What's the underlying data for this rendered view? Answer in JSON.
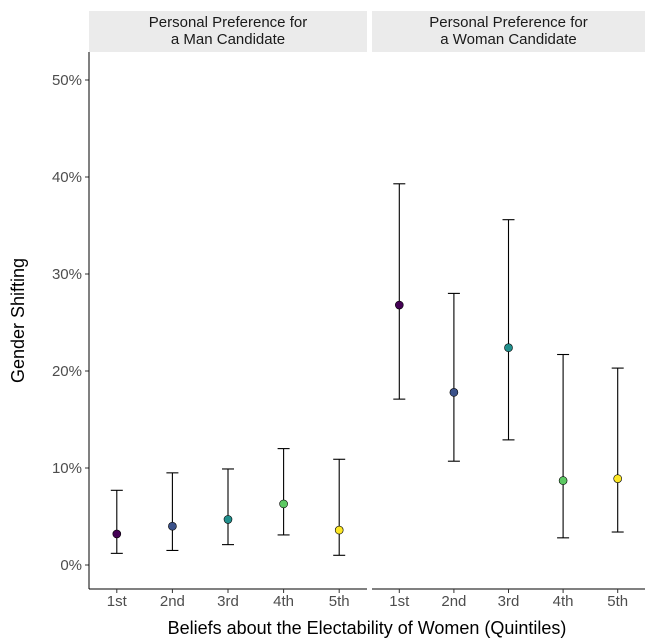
{
  "chart_data": {
    "type": "scatter",
    "subtype": "point-with-error-bars, faceted",
    "xlabel": "Beliefs about the Electability of Women (Quintiles)",
    "ylabel": "Gender Shifting",
    "ylim": [
      0,
      0.52
    ],
    "y_ticks": [
      0,
      0.1,
      0.2,
      0.3,
      0.4,
      0.5
    ],
    "y_tick_labels": [
      "0%",
      "10%",
      "20%",
      "30%",
      "40%",
      "50%"
    ],
    "categories": [
      "1st",
      "2nd",
      "3rd",
      "4th",
      "5th"
    ],
    "colors": [
      "#440154",
      "#3b528b",
      "#21908d",
      "#5dc963",
      "#fde725"
    ],
    "grid": false,
    "legend": "none",
    "panels": [
      {
        "title": "Personal Preference for\na Man Candidate",
        "title_lines": [
          "Personal Preference for",
          "a Man Candidate"
        ],
        "points": [
          {
            "x": "1st",
            "y": 0.032,
            "low": 0.012,
            "high": 0.077
          },
          {
            "x": "2nd",
            "y": 0.04,
            "low": 0.015,
            "high": 0.095
          },
          {
            "x": "3rd",
            "y": 0.047,
            "low": 0.021,
            "high": 0.099
          },
          {
            "x": "4th",
            "y": 0.063,
            "low": 0.031,
            "high": 0.12
          },
          {
            "x": "5th",
            "y": 0.036,
            "low": 0.01,
            "high": 0.109
          }
        ]
      },
      {
        "title": "Personal Preference for\na Woman Candidate",
        "title_lines": [
          "Personal Preference for",
          "a Woman Candidate"
        ],
        "points": [
          {
            "x": "1st",
            "y": 0.268,
            "low": 0.171,
            "high": 0.393
          },
          {
            "x": "2nd",
            "y": 0.178,
            "low": 0.107,
            "high": 0.28
          },
          {
            "x": "3rd",
            "y": 0.224,
            "low": 0.129,
            "high": 0.356
          },
          {
            "x": "4th",
            "y": 0.087,
            "low": 0.028,
            "high": 0.217
          },
          {
            "x": "5th",
            "y": 0.089,
            "low": 0.034,
            "high": 0.203
          }
        ]
      }
    ]
  }
}
